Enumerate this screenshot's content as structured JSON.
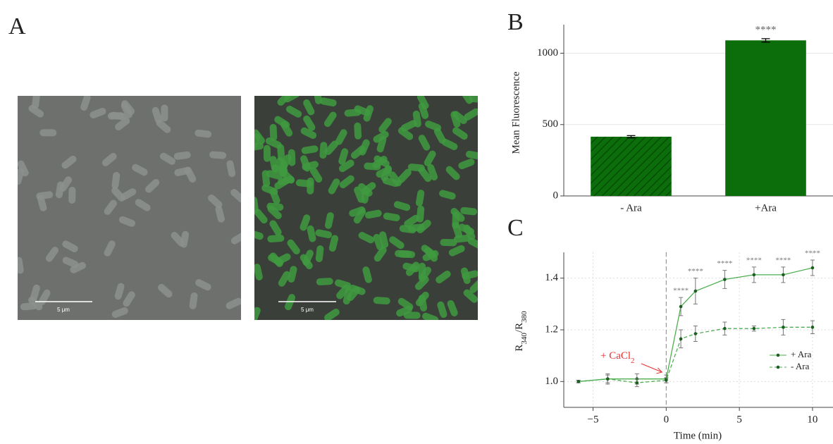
{
  "panel_labels": [
    "A",
    "B",
    "C"
  ],
  "images": [
    {
      "scale_bar": "5 μm"
    },
    {
      "scale_bar": "5 μm"
    }
  ],
  "chart_data": [
    {
      "type": "bar",
      "ylabel": "Mean Fluorescence",
      "categories": [
        "- Ara",
        "+Ara"
      ],
      "values": [
        415,
        1090
      ],
      "errors": [
        8,
        12
      ],
      "color": "#0b6e0b",
      "bar_hatch": [
        true,
        false
      ],
      "annotations": [
        null,
        "****"
      ],
      "ylim": [
        0,
        1200
      ],
      "yticks": [
        0,
        500,
        1000
      ],
      "grid": true
    },
    {
      "type": "line",
      "xlabel": "Time (min)",
      "ylabel_parts": [
        "R",
        "340",
        "/R",
        "380"
      ],
      "x": [
        -6,
        -4,
        -2,
        0,
        1,
        2,
        4,
        6,
        8,
        10
      ],
      "series": [
        {
          "name": "+ Ara",
          "color": "#4caf50",
          "dash": false,
          "values": [
            1.0,
            1.01,
            1.01,
            1.01,
            1.29,
            1.35,
            1.395,
            1.413,
            1.413,
            1.44
          ],
          "errors": [
            0.005,
            0.02,
            0.02,
            0.015,
            0.035,
            0.05,
            0.035,
            0.03,
            0.03,
            0.03
          ],
          "annotations": [
            null,
            null,
            null,
            null,
            "****",
            "****",
            "****",
            "****",
            "****",
            "****"
          ]
        },
        {
          "name": "- Ara",
          "color": "#4caf50",
          "dash": true,
          "values": [
            1.0,
            1.01,
            0.995,
            1.005,
            1.165,
            1.185,
            1.205,
            1.205,
            1.21,
            1.21
          ],
          "errors": [
            0.005,
            0.015,
            0.015,
            0.01,
            0.035,
            0.03,
            0.025,
            0.01,
            0.03,
            0.025
          ]
        }
      ],
      "event_x": 0,
      "event_label_parts": [
        "+ CaCl",
        "2"
      ],
      "xlim": [
        -7,
        11.4
      ],
      "ylim": [
        0.9,
        1.5
      ],
      "xticks": [
        {
          "value": -5,
          "label": "−5"
        },
        0,
        5,
        10
      ],
      "yticks": [
        {
          "value": 1,
          "label": "1.0"
        },
        1.2,
        1.4
      ],
      "grid": true,
      "legend": "center right"
    }
  ]
}
